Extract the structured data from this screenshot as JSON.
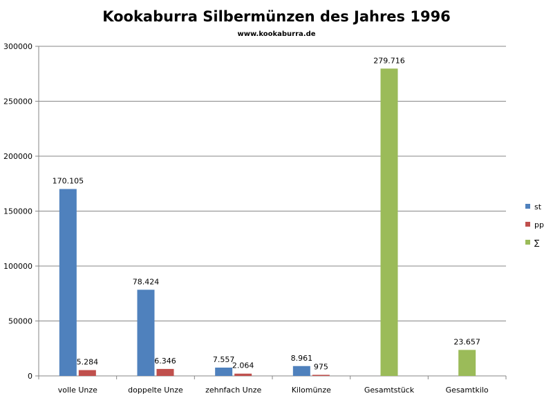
{
  "chart_data": {
    "type": "bar",
    "title": "Kookaburra Silbermünzen des Jahres 1996",
    "subtitle": "www.kookaburra.de",
    "xlabel": "",
    "ylabel": "",
    "ylim": [
      0,
      300000
    ],
    "yticks": [
      0,
      50000,
      100000,
      150000,
      200000,
      250000,
      300000
    ],
    "ytick_labels": [
      "0",
      "50000",
      "100000",
      "150000",
      "200000",
      "250000",
      "300000"
    ],
    "grid": true,
    "legend_position": "right",
    "categories": [
      "volle Unze",
      "doppelte Unze",
      "zehnfach Unze",
      "Kilomünze",
      "Gesamtstück",
      "Gesamtkilo"
    ],
    "series": [
      {
        "name": "st",
        "color": "#4f81bd",
        "values": [
          170105,
          78424,
          7557,
          8961,
          null,
          null
        ],
        "labels": [
          "170.105",
          "78.424",
          "7.557",
          "8.961",
          "",
          ""
        ]
      },
      {
        "name": "pp",
        "color": "#c0504d",
        "values": [
          5284,
          6346,
          2064,
          975,
          null,
          null
        ],
        "labels": [
          "5.284",
          "6.346",
          "2.064",
          "975",
          "",
          ""
        ]
      },
      {
        "name": "∑",
        "color": "#9bbb59",
        "values": [
          null,
          null,
          null,
          null,
          279716,
          23657
        ],
        "labels": [
          "",
          "",
          "",
          "",
          "279.716",
          "23.657"
        ]
      }
    ]
  }
}
